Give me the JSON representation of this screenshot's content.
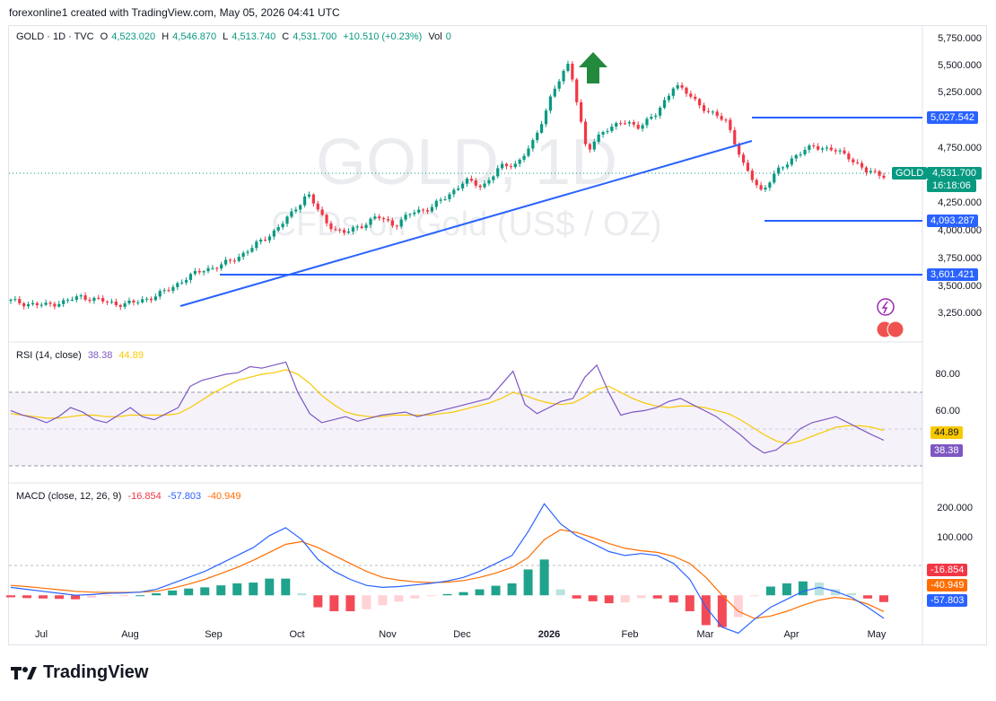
{
  "header": {
    "caption": "forexonline1 created with TradingView.com, May 05, 2026 04:41 UTC"
  },
  "main_legend": {
    "symbol": "GOLD · 1D · TVC",
    "o_label": "O",
    "o_value": "4,523.020",
    "h_label": "H",
    "h_value": "4,546.870",
    "l_label": "L",
    "l_value": "4,513.740",
    "c_label": "C",
    "c_value": "4,531.700",
    "change": "+10.510 (+0.23%)",
    "vol_label": "Vol",
    "vol_value": "0"
  },
  "watermark": {
    "line1": "GOLD, 1D",
    "line2": "CFDs on Gold (US$ / OZ)"
  },
  "price_axis": [
    "5,750.000",
    "5,500.000",
    "5,250.000",
    "4,750.000",
    "4,250.000",
    "4,000.000",
    "3,750.000",
    "3,500.000",
    "3,250.000"
  ],
  "price_tags": {
    "level_5027": "5,027.542",
    "level_4093": "4,093.287",
    "level_3601": "3,601.421",
    "symbol_tag": "GOLD",
    "current_price": "4,531.700",
    "countdown": "16:18:06"
  },
  "rsi": {
    "title": "RSI (14, close)",
    "rsi_value": "38.38",
    "ma_value": "44.89",
    "axis": [
      "80.00",
      "60.00"
    ]
  },
  "macd": {
    "title": "MACD (close, 12, 26, 9)",
    "hist_value": "-16.854",
    "macd_value": "-57.803",
    "signal_value": "-40.949",
    "axis": [
      "200.000",
      "100.000"
    ]
  },
  "time_axis": [
    "Jul",
    "Aug",
    "Sep",
    "Oct",
    "Nov",
    "Dec",
    "2026",
    "Feb",
    "Mar",
    "Apr",
    "May"
  ],
  "footer": {
    "brand": "TradingView"
  },
  "colors": {
    "up": "#089981",
    "down": "#f23645",
    "line_blue": "#2962ff",
    "rsi": "#7e57c2",
    "rsi_ma": "#f9c900",
    "macd": "#2962ff",
    "signal": "#ff6d00"
  },
  "chart_data": {
    "type": "candlestick",
    "price_scale": {
      "min": 3150,
      "max": 5800
    },
    "price_series": [
      {
        "x": "Jul",
        "y": 3350
      },
      {
        "x": "Jul",
        "y": 3320
      },
      {
        "x": "Jul",
        "y": 3310
      },
      {
        "x": "Jul",
        "y": 3340
      },
      {
        "x": "Aug",
        "y": 3390
      },
      {
        "x": "Aug",
        "y": 3360
      },
      {
        "x": "Aug",
        "y": 3320
      },
      {
        "x": "Aug",
        "y": 3330
      },
      {
        "x": "Aug",
        "y": 3380
      },
      {
        "x": "Sep",
        "y": 3450
      },
      {
        "x": "Sep",
        "y": 3560
      },
      {
        "x": "Sep",
        "y": 3640
      },
      {
        "x": "Sep",
        "y": 3680
      },
      {
        "x": "Sep",
        "y": 3760
      },
      {
        "x": "Oct",
        "y": 3870
      },
      {
        "x": "Oct",
        "y": 3990
      },
      {
        "x": "Oct",
        "y": 4150
      },
      {
        "x": "Oct",
        "y": 4360
      },
      {
        "x": "Oct",
        "y": 4090
      },
      {
        "x": "Nov",
        "y": 3980
      },
      {
        "x": "Nov",
        "y": 4050
      },
      {
        "x": "Nov",
        "y": 4140
      },
      {
        "x": "Nov",
        "y": 4060
      },
      {
        "x": "Dec",
        "y": 4180
      },
      {
        "x": "Dec",
        "y": 4220
      },
      {
        "x": "Dec",
        "y": 4330
      },
      {
        "x": "Dec",
        "y": 4480
      },
      {
        "x": "2026",
        "y": 4420
      },
      {
        "x": "2026",
        "y": 4600
      },
      {
        "x": "2026",
        "y": 4640
      },
      {
        "x": "2026",
        "y": 4850
      },
      {
        "x": "2026",
        "y": 5300
      },
      {
        "x": "2026",
        "y": 5580
      },
      {
        "x": "Feb",
        "y": 4740
      },
      {
        "x": "Feb",
        "y": 4960
      },
      {
        "x": "Feb",
        "y": 5020
      },
      {
        "x": "Feb",
        "y": 4990
      },
      {
        "x": "Feb",
        "y": 5100
      },
      {
        "x": "Mar",
        "y": 5380
      },
      {
        "x": "Mar",
        "y": 5260
      },
      {
        "x": "Mar",
        "y": 5110
      },
      {
        "x": "Mar",
        "y": 5040
      },
      {
        "x": "Mar",
        "y": 4600
      },
      {
        "x": "Mar",
        "y": 4380
      },
      {
        "x": "Apr",
        "y": 4580
      },
      {
        "x": "Apr",
        "y": 4720
      },
      {
        "x": "Apr",
        "y": 4800
      },
      {
        "x": "Apr",
        "y": 4770
      },
      {
        "x": "Apr",
        "y": 4700
      },
      {
        "x": "May",
        "y": 4560
      },
      {
        "x": "May",
        "y": 4531.7
      }
    ],
    "horizontal_levels": [
      5027.542,
      4093.287,
      3601.421
    ],
    "trendline": {
      "from": {
        "x": "Aug",
        "y": 3290
      },
      "to": {
        "x": "Mar",
        "y": 4840
      }
    },
    "rsi_scale": {
      "min": 15,
      "max": 95
    },
    "rsi_series": [
      58,
      55,
      53,
      50,
      54,
      60,
      57,
      52,
      50,
      55,
      60,
      54,
      52,
      56,
      60,
      74,
      78,
      80,
      82,
      83,
      87,
      86,
      88,
      90,
      70,
      56,
      50,
      52,
      54,
      51,
      53,
      55,
      56,
      57,
      54,
      56,
      58,
      60,
      62,
      64,
      66,
      75,
      84,
      62,
      56,
      60,
      64,
      66,
      80,
      88,
      70,
      55,
      57,
      58,
      60,
      64,
      66,
      62,
      58,
      54,
      48,
      42,
      35,
      30,
      32,
      38,
      46,
      50,
      52,
      54,
      50,
      46,
      42,
      38.38
    ],
    "rsi_ma_series": [
      56,
      55,
      54,
      53,
      53,
      54,
      55,
      55,
      54,
      54,
      55,
      55,
      55,
      55,
      56,
      60,
      65,
      70,
      74,
      78,
      80,
      82,
      83,
      85,
      82,
      76,
      68,
      62,
      57,
      55,
      54,
      54,
      55,
      55,
      55,
      55,
      56,
      57,
      59,
      61,
      63,
      66,
      70,
      68,
      65,
      63,
      62,
      63,
      67,
      72,
      74,
      70,
      66,
      63,
      61,
      60,
      61,
      61,
      60,
      58,
      56,
      52,
      47,
      42,
      38,
      36,
      38,
      41,
      44,
      47,
      48,
      48,
      47,
      44.89
    ],
    "macd_scale": {
      "min": -110,
      "max": 260
    },
    "macd_series": [
      20,
      15,
      10,
      5,
      0,
      2,
      5,
      6,
      8,
      15,
      30,
      45,
      60,
      80,
      100,
      120,
      150,
      170,
      140,
      90,
      60,
      40,
      25,
      20,
      22,
      26,
      30,
      36,
      45,
      60,
      80,
      100,
      160,
      230,
      180,
      150,
      130,
      110,
      100,
      105,
      100,
      80,
      40,
      -30,
      -80,
      -95,
      -60,
      -30,
      -10,
      10,
      20,
      10,
      -5,
      -30,
      -57.803
    ],
    "signal_series": [
      25,
      22,
      18,
      14,
      10,
      8,
      7,
      7,
      8,
      10,
      18,
      28,
      40,
      55,
      70,
      88,
      108,
      128,
      135,
      120,
      100,
      80,
      60,
      45,
      38,
      34,
      32,
      33,
      37,
      45,
      56,
      70,
      95,
      140,
      165,
      158,
      145,
      130,
      118,
      112,
      108,
      98,
      80,
      45,
      0,
      -40,
      -58,
      -52,
      -40,
      -25,
      -12,
      -5,
      -10,
      -22,
      -40.949
    ],
    "histogram_last": -16.854,
    "price_labels": [
      "5,750.000",
      "5,500.000",
      "5,250.000",
      "4,750.000",
      "4,250.000",
      "4,000.000",
      "3,750.000",
      "3,500.000",
      "3,250.000"
    ],
    "rsi_labels": [
      "80.00",
      "60.00"
    ],
    "macd_labels": [
      "200.000",
      "100.000"
    ],
    "time_labels": [
      "Jul",
      "Aug",
      "Sep",
      "Oct",
      "Nov",
      "Dec",
      "2026",
      "Feb",
      "Mar",
      "Apr",
      "May"
    ]
  }
}
